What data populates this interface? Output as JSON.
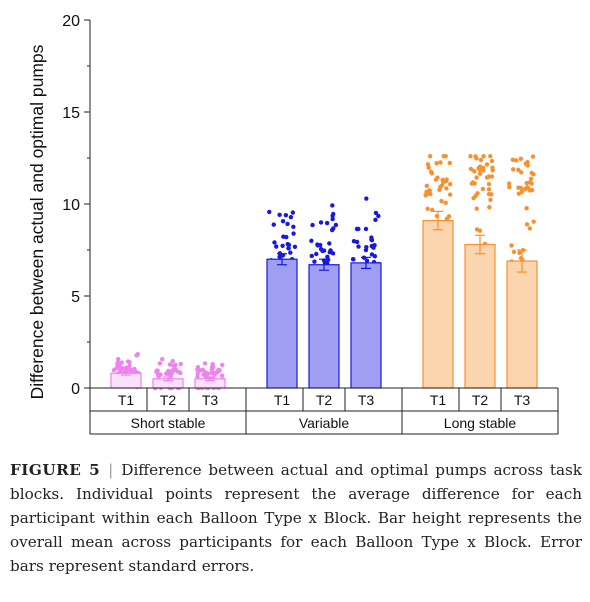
{
  "chart_data": {
    "type": "bar",
    "ylabel": "Difference between actual and optimal pumps",
    "ylim": [
      0,
      20
    ],
    "yticks": [
      0,
      5,
      10,
      15,
      20
    ],
    "groups": [
      {
        "name": "Short stable",
        "color": "#ee82ee",
        "fill": "#fbe0fb",
        "bars": [
          {
            "label": "T1",
            "mean": 0.8,
            "se": 0.1
          },
          {
            "label": "T2",
            "mean": 0.5,
            "se": 0.1
          },
          {
            "label": "T3",
            "mean": 0.5,
            "se": 0.1
          }
        ]
      },
      {
        "name": "Variable",
        "color": "#1818e0",
        "fill": "#9e9ef2",
        "bars": [
          {
            "label": "T1",
            "mean": 7.0,
            "se": 0.3
          },
          {
            "label": "T2",
            "mean": 6.7,
            "se": 0.3
          },
          {
            "label": "T3",
            "mean": 6.8,
            "se": 0.3
          }
        ]
      },
      {
        "name": "Long stable",
        "color": "#f7902f",
        "fill": "#fbd5ad",
        "bars": [
          {
            "label": "T1",
            "mean": 9.1,
            "se": 0.5
          },
          {
            "label": "T2",
            "mean": 7.8,
            "se": 0.5
          },
          {
            "label": "T3",
            "mean": 6.9,
            "se": 0.6
          }
        ]
      }
    ]
  },
  "caption": {
    "label": "FIGURE 5",
    "separator": "|",
    "text": "Difference between actual and optimal pumps across task blocks. Individual points represent the average difference for each participant within each Balloon Type x Block. Bar height represents the overall mean across participants for each Balloon Type x Block. Error bars represent standard errors."
  }
}
